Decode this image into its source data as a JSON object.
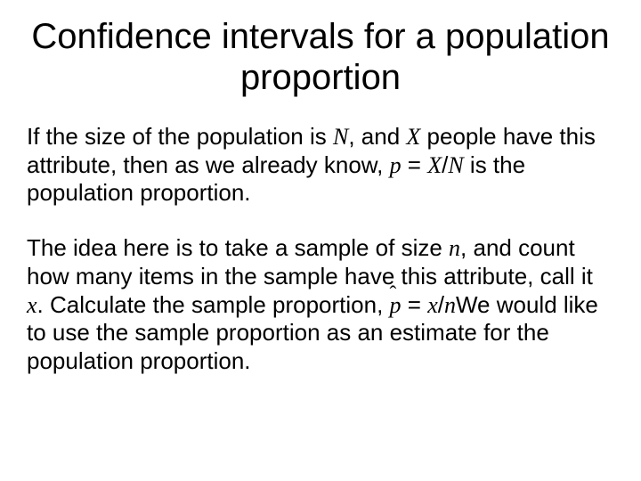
{
  "title": "Confidence intervals for a population proportion",
  "p1": {
    "t1": "If  the size of the population is ",
    "N": "N",
    "t2": ", and ",
    "X": "X",
    "t3": " people have this attribute, then as we already know,  ",
    "formula_p": "p",
    "formula_eq": " = ",
    "formula_X": "X",
    "formula_slash": "/",
    "formula_N": "N",
    "t4": "  is the population proportion."
  },
  "p2": {
    "t1": "The idea here is to take a sample of size ",
    "n": "n",
    "t2": ", and count how many items in the sample have this attribute, call it ",
    "x": "x",
    "t3": ".  Calculate  the sample proportion,                 ",
    "phat_p": "p",
    "phat_hat": "ˆ",
    "phat_eq": " = ",
    "phat_x": "x",
    "phat_slash": "/",
    "phat_n": "n",
    "t4": "We would like to use the sample proportion as an estimate for the population proportion."
  }
}
